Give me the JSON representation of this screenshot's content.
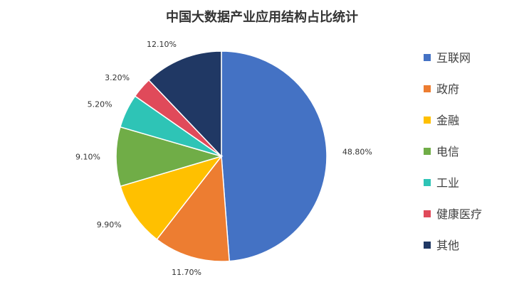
{
  "chart_data": {
    "type": "pie",
    "title": "中国大数据产业应用结构占比统计",
    "categories": [
      "互联网",
      "政府",
      "金融",
      "电信",
      "工业",
      "健康医疗",
      "其他"
    ],
    "values": [
      48.8,
      11.7,
      9.9,
      9.1,
      5.2,
      3.2,
      12.1
    ],
    "labels": [
      "48.80%",
      "11.70%",
      "9.90%",
      "9.10%",
      "5.20%",
      "3.20%",
      "12.10%"
    ],
    "colors": [
      "#4472C4",
      "#ED7D31",
      "#FFC000",
      "#70AD47",
      "#2EC4B6",
      "#E04A5A",
      "#203864"
    ],
    "start_angle": "12 o'clock",
    "direction": "clockwise",
    "legend_position": "right"
  }
}
